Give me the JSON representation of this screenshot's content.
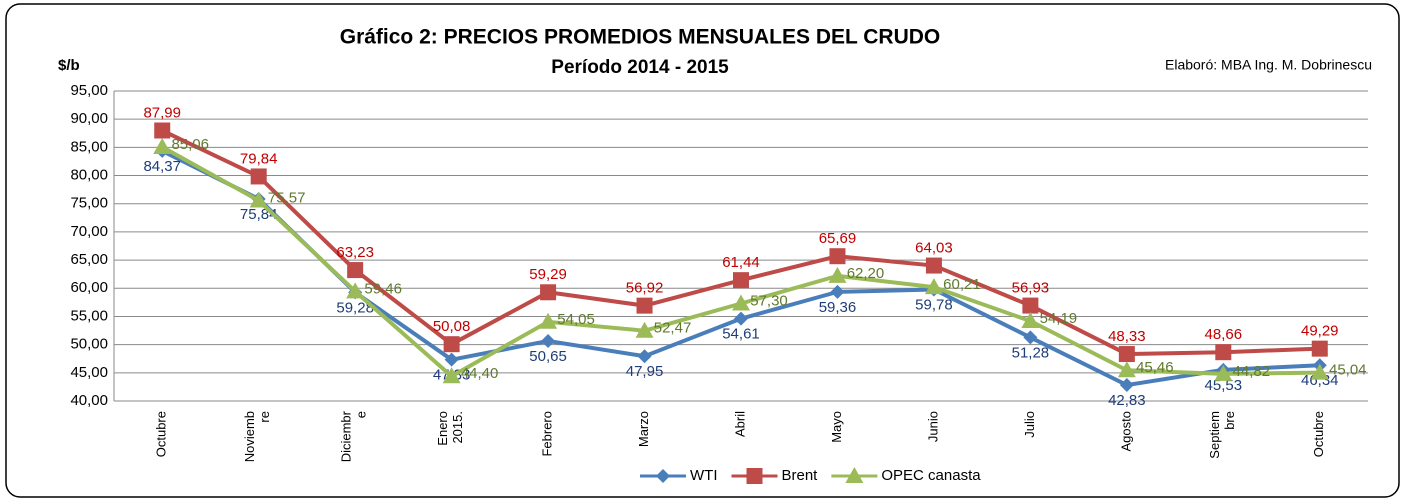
{
  "chart_data": {
    "type": "line",
    "title": "Gráfico 2: PRECIOS PROMEDIOS MENSUALES DEL CRUDO",
    "subtitle": "Período 2014 - 2015",
    "y_label": "$/b",
    "annotation": "Elaboró: MBA Ing. M. Dobrinescu",
    "categories": [
      "Octubre",
      "Noviemb\nre",
      "Diciembr\ne",
      "Enero\n2015.",
      "Febrero",
      "Marzo",
      "Abril",
      "Mayo",
      "Junio",
      "Julio",
      "Agosto",
      "Septiem\nbre",
      "Octubre"
    ],
    "series": [
      {
        "name": "WTI",
        "color": "#4a7ebb",
        "label_color": "#1f3d7a",
        "marker": "diamond",
        "values": [
          84.37,
          75.84,
          59.28,
          47.33,
          50.65,
          47.95,
          54.61,
          59.36,
          59.78,
          51.28,
          42.83,
          45.53,
          46.34
        ],
        "value_labels": [
          "84,37",
          "75,84",
          "59,28",
          "47,33",
          "50,65",
          "47,95",
          "54,61",
          "59,36",
          "59,78",
          "51,28",
          "42,83",
          "45,53",
          "46,34"
        ]
      },
      {
        "name": "Brent",
        "color": "#be4b48",
        "label_color": "#c00000",
        "marker": "square",
        "values": [
          87.99,
          79.84,
          63.23,
          50.08,
          59.29,
          56.92,
          61.44,
          65.69,
          64.03,
          56.93,
          48.33,
          48.66,
          49.29
        ],
        "value_labels": [
          "87,99",
          "79,84",
          "63,23",
          "50,08",
          "59,29",
          "56,92",
          "61,44",
          "65,69",
          "64,03",
          "56,93",
          "48,33",
          "48,66",
          "49,29"
        ]
      },
      {
        "name": "OPEC canasta",
        "color": "#9bbb59",
        "label_color": "#5f7a2e",
        "marker": "triangle",
        "values": [
          85.06,
          75.57,
          59.46,
          44.4,
          54.05,
          52.47,
          57.3,
          62.2,
          60.21,
          54.19,
          45.46,
          44.82,
          45.04
        ],
        "value_labels": [
          "85,06",
          "75,57",
          "59,46",
          "44,40",
          "54,05",
          "52,47",
          "57,30",
          "62,20",
          "60,21",
          "54,19",
          "45,46",
          "44,82",
          "45,04"
        ]
      }
    ],
    "ylim": [
      40,
      95
    ],
    "yticks": [
      {
        "value": 40,
        "label": "40,00"
      },
      {
        "value": 45,
        "label": "45,00"
      },
      {
        "value": 50,
        "label": "50,00"
      },
      {
        "value": 55,
        "label": "55,00"
      },
      {
        "value": 60,
        "label": "60,00"
      },
      {
        "value": 65,
        "label": "65,00"
      },
      {
        "value": 70,
        "label": "70,00"
      },
      {
        "value": 75,
        "label": "75,00"
      },
      {
        "value": 80,
        "label": "80,00"
      },
      {
        "value": 85,
        "label": "85,00"
      },
      {
        "value": 90,
        "label": "90,00"
      },
      {
        "value": 95,
        "label": "95,00"
      }
    ],
    "grid": true,
    "legend": "bottom"
  }
}
